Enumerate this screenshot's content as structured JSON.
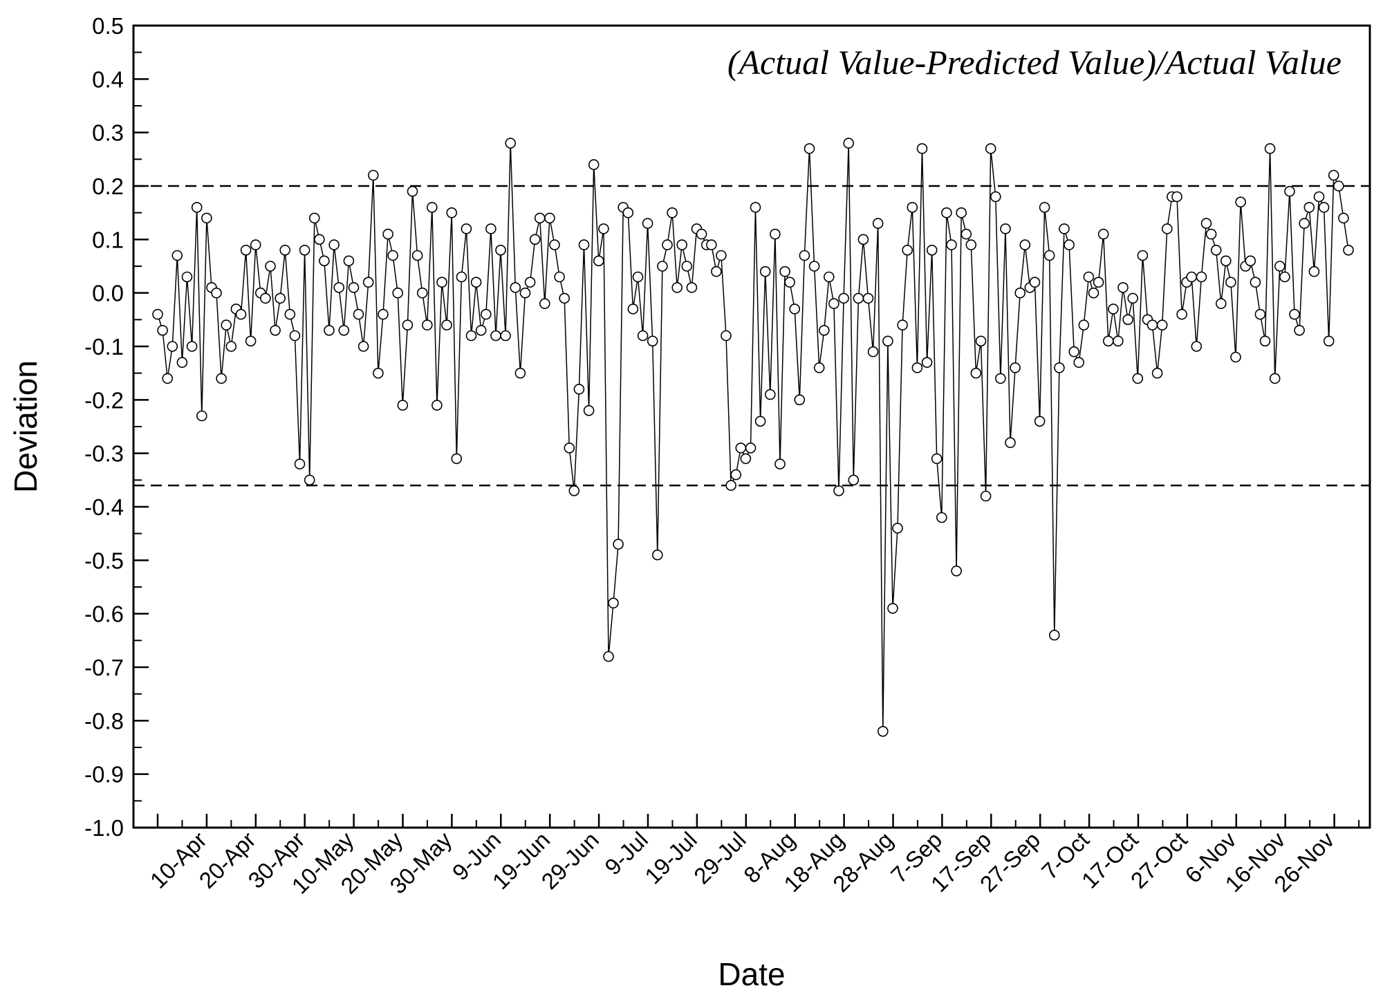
{
  "chart_data": {
    "type": "line",
    "markers": "open-circle",
    "annotation": "(Actual Value-Predicted Value)/Actual Value",
    "xlabel": "Date",
    "ylabel": "Deviation",
    "ylim": [
      -1.0,
      0.5
    ],
    "y_ticks": [
      "0.5",
      "0.4",
      "0.3",
      "0.2",
      "0.1",
      "0.0",
      "-0.1",
      "-0.2",
      "-0.3",
      "-0.4",
      "-0.5",
      "-0.6",
      "-0.7",
      "-0.8",
      "-0.9",
      "-1.0"
    ],
    "x_ticks": [
      "10-Apr",
      "20-Apr",
      "30-Apr",
      "10-May",
      "20-May",
      "30-May",
      "9-Jun",
      "19-Jun",
      "29-Jun",
      "9-Jul",
      "19-Jul",
      "29-Jul",
      "8-Aug",
      "18-Aug",
      "28-Aug",
      "7-Sep",
      "17-Sep",
      "27-Sep",
      "7-Oct",
      "17-Oct",
      "27-Oct",
      "6-Nov",
      "16-Nov",
      "26-Nov"
    ],
    "reference_lines": [
      0.2,
      -0.36
    ],
    "grid": false,
    "series": [
      {
        "values": [
          -0.04,
          -0.07,
          -0.16,
          -0.1,
          0.07,
          -0.13,
          0.03,
          -0.1,
          0.16,
          -0.23,
          0.14,
          0.01,
          0.0,
          -0.16,
          -0.06,
          -0.1,
          -0.03,
          -0.04,
          0.08,
          -0.09,
          0.09,
          0.0,
          -0.01,
          0.05,
          -0.07,
          -0.01,
          0.08,
          -0.04,
          -0.08,
          -0.32,
          0.08,
          -0.35,
          0.14,
          0.1,
          0.06,
          -0.07,
          0.09,
          0.01,
          -0.07,
          0.06,
          0.01,
          -0.04,
          -0.1,
          0.02,
          0.22,
          -0.15,
          -0.04,
          0.11,
          0.07,
          0.0,
          -0.21,
          -0.06,
          0.19,
          0.07,
          0.0,
          -0.06,
          0.16,
          -0.21,
          0.02,
          -0.06,
          0.15,
          -0.31,
          0.03,
          0.12,
          -0.08,
          0.02,
          -0.07,
          -0.04,
          0.12,
          -0.08,
          0.08,
          -0.08,
          0.28,
          0.01,
          -0.15,
          0.0,
          0.02,
          0.1,
          0.14,
          -0.02,
          0.14,
          0.09,
          0.03,
          -0.01,
          -0.29,
          -0.37,
          -0.18,
          0.09,
          -0.22,
          0.24,
          0.06,
          0.12,
          -0.68,
          -0.58,
          -0.47,
          0.16,
          0.15,
          -0.03,
          0.03,
          -0.08,
          0.13,
          -0.09,
          -0.49,
          0.05,
          0.09,
          0.15,
          0.01,
          0.09,
          0.05,
          0.01,
          0.12,
          0.11,
          0.09,
          0.09,
          0.04,
          0.07,
          -0.08,
          -0.36,
          -0.34,
          -0.29,
          -0.31,
          -0.29,
          0.16,
          -0.24,
          0.04,
          -0.19,
          0.11,
          -0.32,
          0.04,
          0.02,
          -0.03,
          -0.2,
          0.07,
          0.27,
          0.05,
          -0.14,
          -0.07,
          0.03,
          -0.02,
          -0.37,
          -0.01,
          0.28,
          -0.35,
          -0.01,
          0.1,
          -0.01,
          -0.11,
          0.13,
          -0.82,
          -0.09,
          -0.59,
          -0.44,
          -0.06,
          0.08,
          0.16,
          -0.14,
          0.27,
          -0.13,
          0.08,
          -0.31,
          -0.42,
          0.15,
          0.09,
          -0.52,
          0.15,
          0.11,
          0.09,
          -0.15,
          -0.09,
          -0.38,
          0.27,
          0.18,
          -0.16,
          0.12,
          -0.28,
          -0.14,
          0.0,
          0.09,
          0.01,
          0.02,
          -0.24,
          0.16,
          0.07,
          -0.64,
          -0.14,
          0.12,
          0.09,
          -0.11,
          -0.13,
          -0.06,
          0.03,
          0.0,
          0.02,
          0.11,
          -0.09,
          -0.03,
          -0.09,
          0.01,
          -0.05,
          -0.01,
          -0.16,
          0.07,
          -0.05,
          -0.06,
          -0.15,
          -0.06,
          0.12,
          0.18,
          0.18,
          -0.04,
          0.02,
          0.03,
          -0.1,
          0.03,
          0.13,
          0.11,
          0.08,
          -0.02,
          0.06,
          0.02,
          -0.12,
          0.17,
          0.05,
          0.06,
          0.02,
          -0.04,
          -0.09,
          0.27,
          -0.16,
          0.05,
          0.03,
          0.19,
          -0.04,
          -0.07,
          0.13,
          0.16,
          0.04,
          0.18,
          0.16,
          -0.09,
          0.22,
          0.2,
          0.14,
          0.08
        ]
      }
    ]
  }
}
